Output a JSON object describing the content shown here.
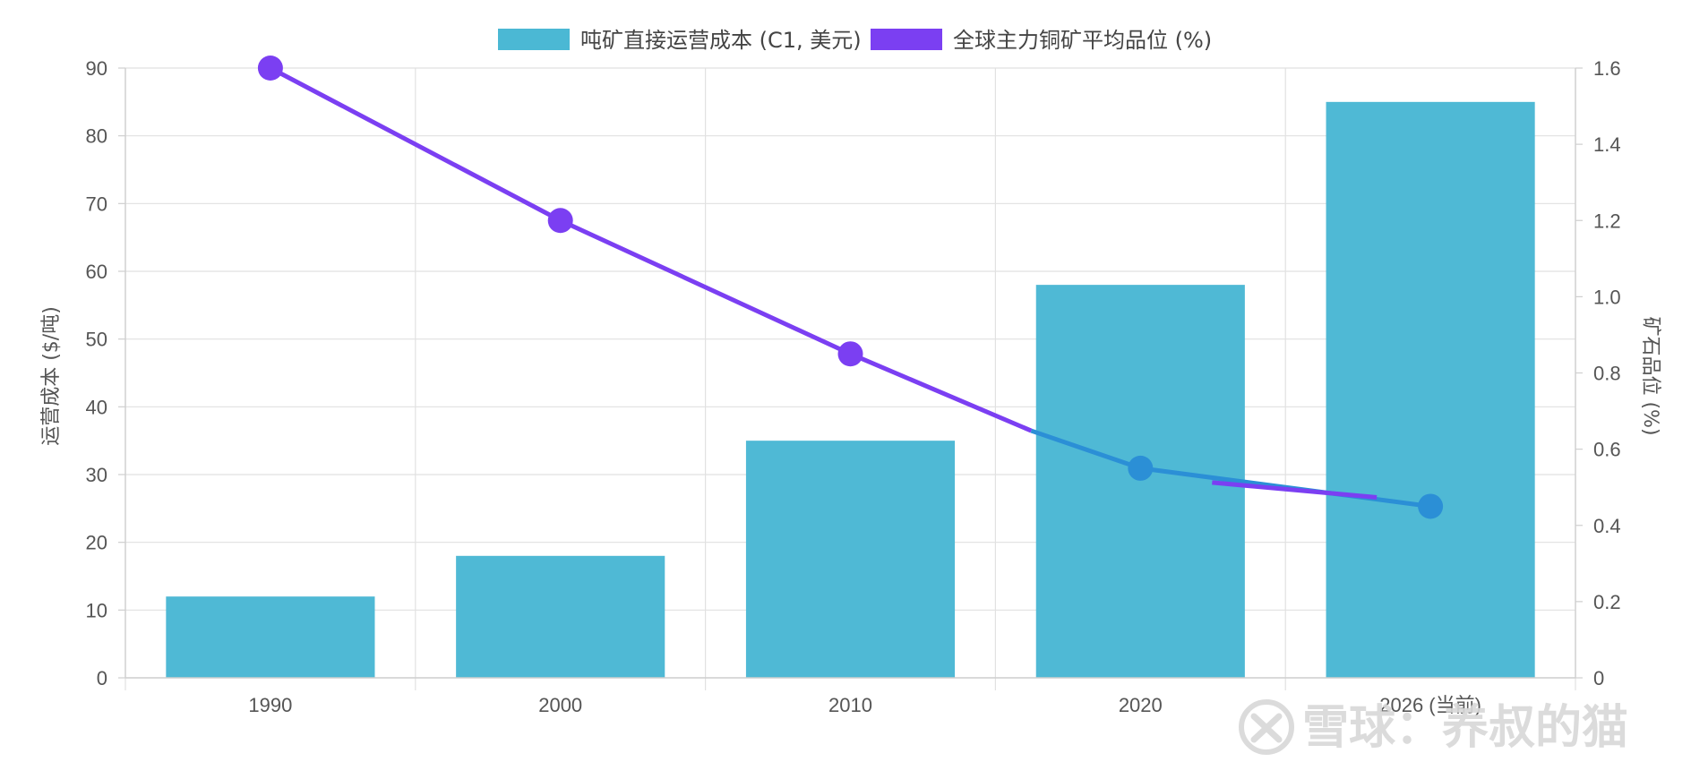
{
  "chart_data": {
    "type": "bar",
    "categories": [
      "1990",
      "2000",
      "2010",
      "2020",
      "2026 (当前)"
    ],
    "series": [
      {
        "name": "吨矿直接运营成本 (C1, 美元)",
        "type": "bar",
        "axis": "left",
        "color": "#4bb8d4",
        "values": [
          12,
          18,
          35,
          58,
          85
        ]
      },
      {
        "name": "全球主力铜矿平均品位 (%)",
        "type": "line",
        "axis": "right",
        "color": "#7b3ff2",
        "values": [
          1.6,
          1.2,
          0.85,
          0.55,
          0.45
        ]
      }
    ],
    "ylabel": "运营成本 ($/吨)",
    "ylabel_right": "矿石品位 (%)",
    "ylim": [
      0,
      90
    ],
    "ylim_right": [
      0,
      1.6
    ],
    "yticks": [
      "0",
      "10",
      "20",
      "30",
      "40",
      "50",
      "60",
      "70",
      "80",
      "90"
    ],
    "yticks_right": [
      "0",
      "0.2",
      "0.4",
      "0.6",
      "0.8",
      "1.0",
      "1.2",
      "1.4",
      "1.6"
    ],
    "grid": true,
    "legend_position": "top-center"
  },
  "watermark": {
    "text": "雪球：养叔的猫"
  }
}
